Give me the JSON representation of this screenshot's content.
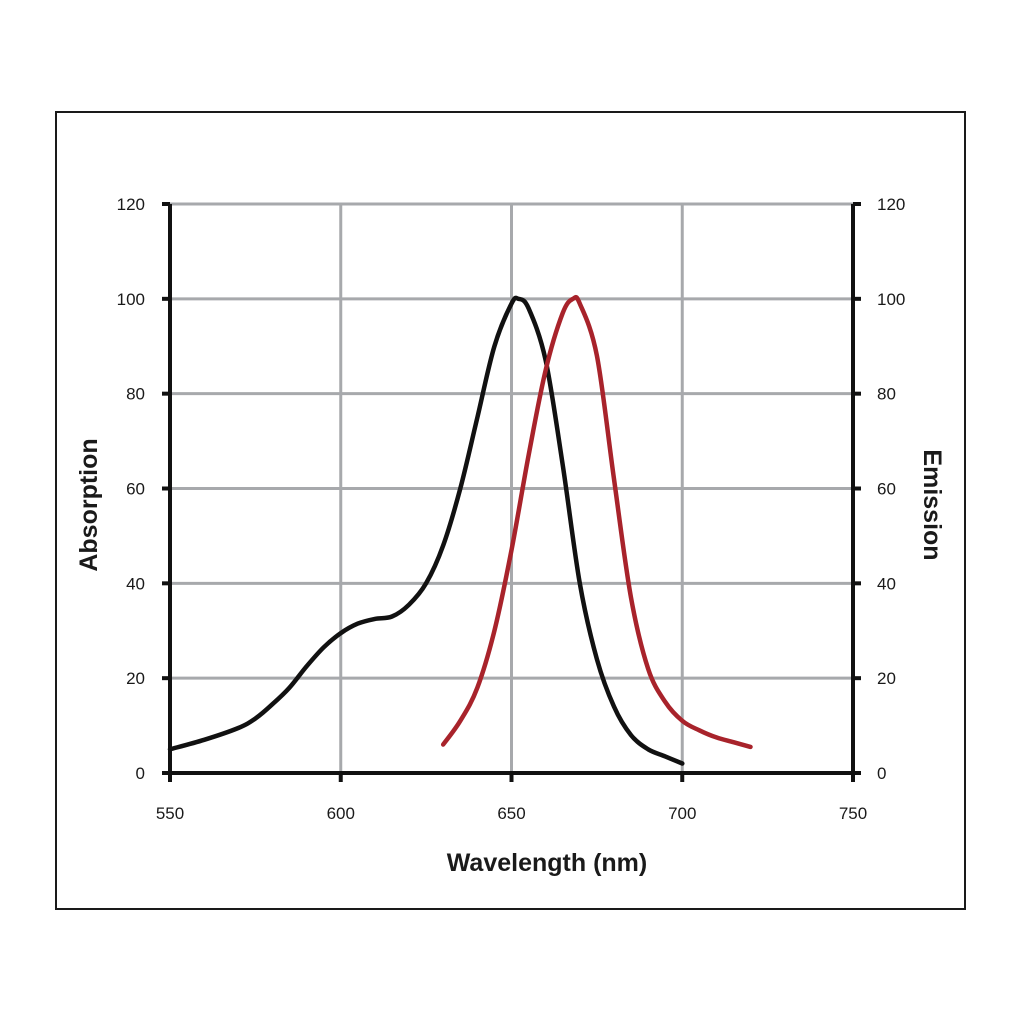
{
  "chart_data": {
    "type": "line",
    "title": "",
    "xlabel": "Wavelength (nm)",
    "ylabel": "Absorption",
    "y2label": "Emission",
    "xlim": [
      550,
      750
    ],
    "ylim": [
      0,
      120
    ],
    "y2lim": [
      0,
      120
    ],
    "x_ticks": [
      550,
      600,
      650,
      700,
      750
    ],
    "y_ticks": [
      0,
      20,
      40,
      60,
      80,
      100,
      120
    ],
    "y2_ticks": [
      0,
      20,
      40,
      60,
      80,
      100,
      120
    ],
    "grid": true,
    "legend": "none",
    "series": [
      {
        "axis": "left",
        "color": "#111111",
        "x": [
          550,
          560,
          570,
          575,
          580,
          585,
          590,
          595,
          600,
          605,
          610,
          615,
          620,
          625,
          630,
          635,
          640,
          645,
          650,
          652,
          655,
          660,
          665,
          670,
          675,
          680,
          685,
          690,
          695,
          700
        ],
        "y": [
          5,
          7,
          9.5,
          11.5,
          14.5,
          18,
          22.5,
          26.5,
          29.5,
          31.5,
          32.5,
          33,
          35.5,
          40,
          48,
          60,
          75,
          90,
          99,
          100,
          98,
          87,
          65,
          40,
          24,
          14,
          8,
          5,
          3.5,
          2
        ]
      },
      {
        "axis": "right",
        "color": "#a8232b",
        "x": [
          630,
          635,
          640,
          645,
          650,
          655,
          660,
          665,
          668,
          670,
          675,
          680,
          685,
          690,
          695,
          700,
          705,
          710,
          715,
          720
        ],
        "y": [
          6,
          11,
          18,
          30,
          47,
          67,
          85,
          97,
          100,
          99,
          88,
          62,
          37,
          22,
          15,
          11,
          9,
          7.5,
          6.5,
          5.5
        ]
      }
    ]
  }
}
